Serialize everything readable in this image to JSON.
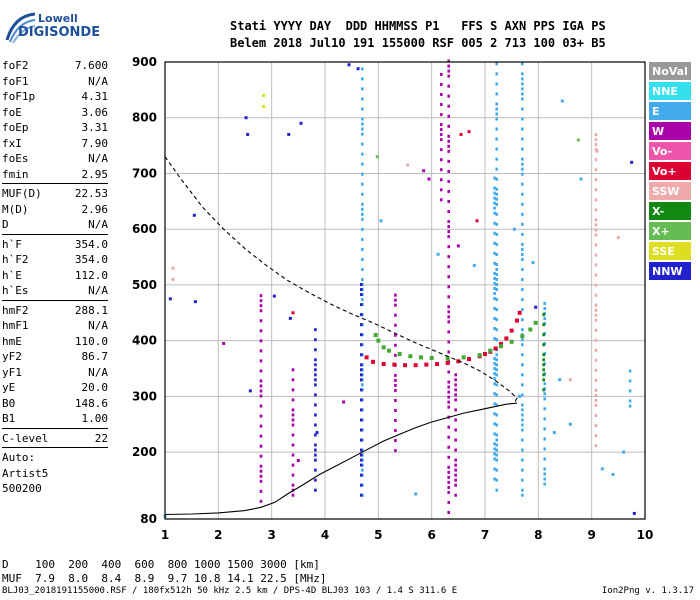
{
  "logo": {
    "line1": "Lowell",
    "line2": "DIGISONDE"
  },
  "header": {
    "line1": "Stati YYYY DAY  DDD HHMMSS P1   FFS S AXN PPS IGA PS",
    "line2": "Belem 2018 Jul10 191 155000 RSF 005 2 713 100 03+ B5"
  },
  "params_group1": [
    {
      "name": "foF2",
      "value": "7.600"
    },
    {
      "name": "foF1",
      "value": "N/A"
    },
    {
      "name": "foF1p",
      "value": "4.31"
    },
    {
      "name": "foE",
      "value": "3.06"
    },
    {
      "name": "foEp",
      "value": "3.31"
    },
    {
      "name": "fxI",
      "value": "7.90"
    },
    {
      "name": "foEs",
      "value": "N/A"
    },
    {
      "name": "fmin",
      "value": "2.95"
    }
  ],
  "params_group2": [
    {
      "name": "MUF(D)",
      "value": "22.53"
    },
    {
      "name": "M(D)",
      "value": "2.96"
    },
    {
      "name": "D",
      "value": "N/A"
    }
  ],
  "params_group3": [
    {
      "name": "h`F",
      "value": "354.0"
    },
    {
      "name": "h`F2",
      "value": "354.0"
    },
    {
      "name": "h`E",
      "value": "112.0"
    },
    {
      "name": "h`Es",
      "value": "N/A"
    }
  ],
  "params_group4": [
    {
      "name": "hmF2",
      "value": "288.1"
    },
    {
      "name": "hmF1",
      "value": "N/A"
    },
    {
      "name": "hmE",
      "value": "110.0"
    },
    {
      "name": "yF2",
      "value": "86.7"
    },
    {
      "name": "yF1",
      "value": "N/A"
    },
    {
      "name": "yE",
      "value": "20.0"
    },
    {
      "name": "B0",
      "value": "148.6"
    },
    {
      "name": "B1",
      "value": "1.00"
    }
  ],
  "params_group5": [
    {
      "name": "C-level",
      "value": "22"
    }
  ],
  "auto": {
    "line1": "Auto:",
    "line2": "Artist5",
    "line3": "500200"
  },
  "legend": [
    {
      "label": "NoVal",
      "color": "#999999"
    },
    {
      "label": "NNE",
      "color": "#33e0ee"
    },
    {
      "label": "E",
      "color": "#44aaee"
    },
    {
      "label": "W",
      "color": "#aa00aa"
    },
    {
      "label": "Vo-",
      "color": "#ee55aa"
    },
    {
      "label": "Vo+",
      "color": "#dd0033"
    },
    {
      "label": "SSW",
      "color": "#eeaaaa"
    },
    {
      "label": "X-",
      "color": "#118811"
    },
    {
      "label": "X+",
      "color": "#66bb55"
    },
    {
      "label": "SSE",
      "color": "#dddd22"
    },
    {
      "label": "NNW",
      "color": "#2222cc"
    }
  ],
  "muf_table": {
    "row1": "D    100  200  400  600  800 1000 1500 3000 [km]",
    "row2": "MUF  7.9  8.0  8.4  8.9  9.7 10.8 14.1 22.5 [MHz]"
  },
  "footer": {
    "left": "BLJ03_2018191155000.RSF / 180fx512h 50 kHz 2.5 km / DPS-4D BLJ03 103 / 1.4 S 311.6 E",
    "right": "Ion2Png v. 1.3.17"
  },
  "chart_data": {
    "type": "scatter",
    "title": "",
    "xlabel": "",
    "ylabel": "",
    "xlim": [
      1,
      10
    ],
    "ylim": [
      80,
      900
    ],
    "x_ticks": [
      "1",
      "2",
      "3",
      "4",
      "5",
      "6",
      "7",
      "8",
      "9",
      "10"
    ],
    "y_ticks": [
      "80",
      "200",
      "300",
      "400",
      "500",
      "600",
      "700",
      "800",
      "900"
    ],
    "grid": true,
    "series": [
      {
        "name": "O-trace",
        "points": [
          [
            4.78,
            370
          ],
          [
            4.9,
            362
          ],
          [
            5.1,
            358
          ],
          [
            5.3,
            357
          ],
          [
            5.5,
            356
          ],
          [
            5.7,
            356
          ],
          [
            5.9,
            357
          ],
          [
            6.1,
            358
          ],
          [
            6.3,
            360
          ],
          [
            6.5,
            363
          ],
          [
            6.7,
            367
          ],
          [
            6.9,
            372
          ],
          [
            7.0,
            376
          ],
          [
            7.1,
            380
          ],
          [
            7.2,
            386
          ],
          [
            7.3,
            394
          ],
          [
            7.4,
            404
          ],
          [
            7.5,
            418
          ],
          [
            7.6,
            436
          ],
          [
            7.65,
            450
          ]
        ]
      },
      {
        "name": "X-trace",
        "points": [
          [
            4.95,
            410
          ],
          [
            5.0,
            400
          ],
          [
            5.1,
            388
          ],
          [
            5.2,
            382
          ],
          [
            5.4,
            376
          ],
          [
            5.6,
            372
          ],
          [
            5.8,
            370
          ],
          [
            6.0,
            369
          ],
          [
            6.3,
            368
          ],
          [
            6.6,
            370
          ],
          [
            6.9,
            374
          ],
          [
            7.1,
            382
          ],
          [
            7.3,
            390
          ],
          [
            7.5,
            398
          ],
          [
            7.7,
            408
          ],
          [
            7.85,
            420
          ],
          [
            7.95,
            432
          ]
        ]
      },
      {
        "name": "profile",
        "points": [
          [
            1.0,
            88
          ],
          [
            1.5,
            89
          ],
          [
            2.0,
            91
          ],
          [
            2.5,
            95
          ],
          [
            2.8,
            101
          ],
          [
            3.06,
            110
          ],
          [
            3.3,
            125
          ],
          [
            3.6,
            142
          ],
          [
            3.9,
            160
          ],
          [
            4.2,
            175
          ],
          [
            4.5,
            190
          ],
          [
            4.8,
            205
          ],
          [
            5.1,
            220
          ],
          [
            5.4,
            232
          ],
          [
            5.7,
            244
          ],
          [
            6.0,
            254
          ],
          [
            6.3,
            262
          ],
          [
            6.6,
            270
          ],
          [
            6.9,
            276
          ],
          [
            7.2,
            282
          ],
          [
            7.4,
            286
          ],
          [
            7.6,
            288
          ]
        ]
      },
      {
        "name": "MUF-dashed",
        "points": [
          [
            1.0,
            730
          ],
          [
            1.3,
            690
          ],
          [
            1.7,
            640
          ],
          [
            2.1,
            600
          ],
          [
            2.5,
            565
          ],
          [
            2.9,
            535
          ],
          [
            3.3,
            508
          ],
          [
            3.7,
            486
          ],
          [
            4.1,
            466
          ],
          [
            4.5,
            448
          ],
          [
            4.9,
            432
          ],
          [
            5.3,
            414
          ],
          [
            5.7,
            396
          ],
          [
            6.0,
            384
          ],
          [
            6.3,
            372
          ],
          [
            6.6,
            360
          ],
          [
            6.9,
            346
          ],
          [
            7.2,
            328
          ],
          [
            7.45,
            310
          ],
          [
            7.6,
            297
          ],
          [
            7.55,
            288
          ]
        ]
      }
    ],
    "echo_columns": [
      {
        "f": 6.32,
        "h0": 80,
        "h1": 900,
        "color": "#aa00aa"
      },
      {
        "f": 7.22,
        "h0": 120,
        "h1": 900,
        "color": "#44aaee"
      },
      {
        "f": 4.7,
        "h0": 120,
        "h1": 890,
        "color": "#44aaee"
      },
      {
        "f": 4.68,
        "h0": 120,
        "h1": 500,
        "color": "#2222cc"
      },
      {
        "f": 7.18,
        "h0": 140,
        "h1": 700,
        "color": "#44aaee"
      },
      {
        "f": 8.12,
        "h0": 140,
        "h1": 470,
        "color": "#44aaee"
      },
      {
        "f": 8.1,
        "h0": 300,
        "h1": 450,
        "color": "#118811"
      },
      {
        "f": 7.7,
        "h0": 120,
        "h1": 900,
        "color": "#44aaee"
      },
      {
        "f": 6.18,
        "h0": 650,
        "h1": 890,
        "color": "#aa00aa"
      },
      {
        "f": 6.45,
        "h0": 120,
        "h1": 350,
        "color": "#aa00aa"
      },
      {
        "f": 3.4,
        "h0": 120,
        "h1": 350,
        "color": "#aa00aa"
      },
      {
        "f": 2.8,
        "h0": 100,
        "h1": 480,
        "color": "#aa00aa"
      },
      {
        "f": 3.82,
        "h0": 120,
        "h1": 420,
        "color": "#2222cc"
      },
      {
        "f": 9.08,
        "h0": 200,
        "h1": 780,
        "color": "#eeaaaa"
      },
      {
        "f": 9.72,
        "h0": 280,
        "h1": 360,
        "color": "#44aaee"
      },
      {
        "f": 5.32,
        "h0": 200,
        "h1": 480,
        "color": "#aa00aa"
      }
    ],
    "scatter_dots": [
      [
        1.1,
        475,
        "#2222cc"
      ],
      [
        1.57,
        470,
        "#2222cc"
      ],
      [
        1.15,
        530,
        "#eeaaaa"
      ],
      [
        1.15,
        510,
        "#eeaaaa"
      ],
      [
        1.55,
        625,
        "#2222cc"
      ],
      [
        2.52,
        800,
        "#2222cc"
      ],
      [
        2.55,
        770,
        "#2222cc"
      ],
      [
        3.32,
        770,
        "#2222cc"
      ],
      [
        3.55,
        790,
        "#2222cc"
      ],
      [
        4.45,
        895,
        "#2222cc"
      ],
      [
        4.62,
        888,
        "#2222cc"
      ],
      [
        2.85,
        840,
        "#dddd22"
      ],
      [
        2.85,
        820,
        "#dddd22"
      ],
      [
        4.98,
        730,
        "#66bb55"
      ],
      [
        5.55,
        715,
        "#eeaaaa"
      ],
      [
        5.85,
        705,
        "#aa00aa"
      ],
      [
        5.95,
        690,
        "#aa00aa"
      ],
      [
        6.55,
        770,
        "#dd0033"
      ],
      [
        6.7,
        775,
        "#dd0033"
      ],
      [
        7.95,
        460,
        "#2222cc"
      ],
      [
        8.45,
        830,
        "#44aaee"
      ],
      [
        9.1,
        740,
        "#eeaaaa"
      ],
      [
        9.75,
        720,
        "#2222cc"
      ],
      [
        9.5,
        585,
        "#eeaaaa"
      ],
      [
        7.55,
        600,
        "#44aaee"
      ],
      [
        7.9,
        540,
        "#44aaee"
      ],
      [
        8.75,
        760,
        "#66bb55"
      ],
      [
        8.8,
        690,
        "#44aaee"
      ],
      [
        5.05,
        615,
        "#44aaee"
      ],
      [
        6.12,
        555,
        "#44aaee"
      ],
      [
        6.5,
        570,
        "#aa00aa"
      ],
      [
        6.85,
        615,
        "#dd0033"
      ],
      [
        3.35,
        440,
        "#2222cc"
      ],
      [
        3.05,
        480,
        "#2222cc"
      ],
      [
        3.4,
        450,
        "#dd0033"
      ],
      [
        2.6,
        310,
        "#2222cc"
      ],
      [
        3.5,
        185,
        "#aa00aa"
      ],
      [
        3.85,
        235,
        "#2222cc"
      ],
      [
        8.6,
        250,
        "#44aaee"
      ],
      [
        8.3,
        235,
        "#44aaee"
      ],
      [
        9.2,
        170,
        "#44aaee"
      ],
      [
        9.4,
        160,
        "#44aaee"
      ],
      [
        9.8,
        90,
        "#2222cc"
      ],
      [
        1.0,
        85,
        "#44aaee"
      ],
      [
        8.6,
        330,
        "#eeaaaa"
      ],
      [
        8.4,
        330,
        "#44aaee"
      ],
      [
        9.6,
        200,
        "#44aaee"
      ],
      [
        2.1,
        395,
        "#aa00aa"
      ],
      [
        5.7,
        125,
        "#44aaee"
      ],
      [
        4.35,
        290,
        "#aa00aa"
      ],
      [
        7.65,
        300,
        "#44aaee"
      ],
      [
        6.8,
        535,
        "#44aaee"
      ]
    ]
  }
}
